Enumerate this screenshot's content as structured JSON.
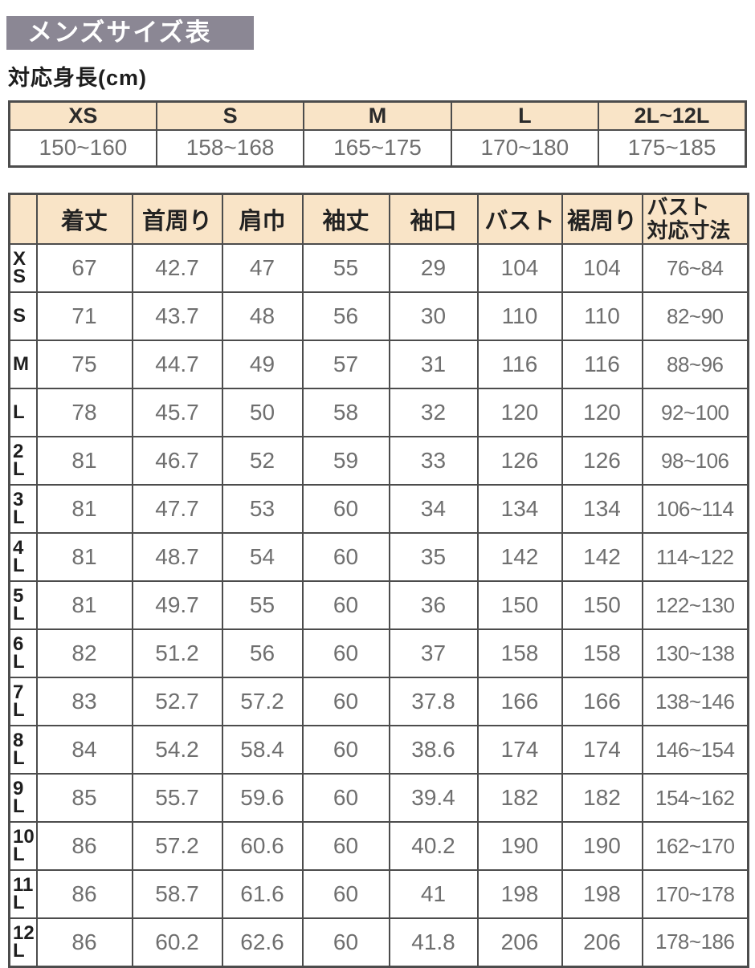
{
  "page": {
    "title": "メンズサイズ表",
    "subtitle": "対応身長(cm)"
  },
  "colors": {
    "title_bar_bg": "#8b8794",
    "header_bg": "#f9e4c7",
    "border": "#4c4c4c",
    "value_text": "#6f6f6f",
    "label_text": "#1e1e1e"
  },
  "height_table": {
    "headers": [
      "XS",
      "S",
      "M",
      "L",
      "2L~12L"
    ],
    "values": [
      "150~160",
      "158~168",
      "165~175",
      "170~180",
      "175~185"
    ]
  },
  "size_table": {
    "headers": [
      [
        "着丈"
      ],
      [
        "首周り"
      ],
      [
        "肩巾"
      ],
      [
        "袖丈"
      ],
      [
        "袖口"
      ],
      [
        "バスト"
      ],
      [
        "裾周り"
      ],
      [
        "バスト",
        "対応寸法"
      ]
    ],
    "rows": [
      {
        "label": [
          "X",
          "S"
        ],
        "values": [
          "67",
          "42.7",
          "47",
          "55",
          "29",
          "104",
          "104",
          "76~84"
        ]
      },
      {
        "label": [
          "S"
        ],
        "values": [
          "71",
          "43.7",
          "48",
          "56",
          "30",
          "110",
          "110",
          "82~90"
        ]
      },
      {
        "label": [
          "M"
        ],
        "values": [
          "75",
          "44.7",
          "49",
          "57",
          "31",
          "116",
          "116",
          "88~96"
        ]
      },
      {
        "label": [
          "L"
        ],
        "values": [
          "78",
          "45.7",
          "50",
          "58",
          "32",
          "120",
          "120",
          "92~100"
        ]
      },
      {
        "label": [
          "2",
          "L"
        ],
        "values": [
          "81",
          "46.7",
          "52",
          "59",
          "33",
          "126",
          "126",
          "98~106"
        ]
      },
      {
        "label": [
          "3",
          "L"
        ],
        "values": [
          "81",
          "47.7",
          "53",
          "60",
          "34",
          "134",
          "134",
          "106~114"
        ]
      },
      {
        "label": [
          "4",
          "L"
        ],
        "values": [
          "81",
          "48.7",
          "54",
          "60",
          "35",
          "142",
          "142",
          "114~122"
        ]
      },
      {
        "label": [
          "5",
          "L"
        ],
        "values": [
          "81",
          "49.7",
          "55",
          "60",
          "36",
          "150",
          "150",
          "122~130"
        ]
      },
      {
        "label": [
          "6",
          "L"
        ],
        "values": [
          "82",
          "51.2",
          "56",
          "60",
          "37",
          "158",
          "158",
          "130~138"
        ]
      },
      {
        "label": [
          "7",
          "L"
        ],
        "values": [
          "83",
          "52.7",
          "57.2",
          "60",
          "37.8",
          "166",
          "166",
          "138~146"
        ]
      },
      {
        "label": [
          "8",
          "L"
        ],
        "values": [
          "84",
          "54.2",
          "58.4",
          "60",
          "38.6",
          "174",
          "174",
          "146~154"
        ]
      },
      {
        "label": [
          "9",
          "L"
        ],
        "values": [
          "85",
          "55.7",
          "59.6",
          "60",
          "39.4",
          "182",
          "182",
          "154~162"
        ]
      },
      {
        "label": [
          "10",
          "L"
        ],
        "values": [
          "86",
          "57.2",
          "60.6",
          "60",
          "40.2",
          "190",
          "190",
          "162~170"
        ]
      },
      {
        "label": [
          "11",
          "L"
        ],
        "values": [
          "86",
          "58.7",
          "61.6",
          "60",
          "41",
          "198",
          "198",
          "170~178"
        ]
      },
      {
        "label": [
          "12",
          "L"
        ],
        "values": [
          "86",
          "60.2",
          "62.6",
          "60",
          "41.8",
          "206",
          "206",
          "178~186"
        ]
      }
    ]
  }
}
